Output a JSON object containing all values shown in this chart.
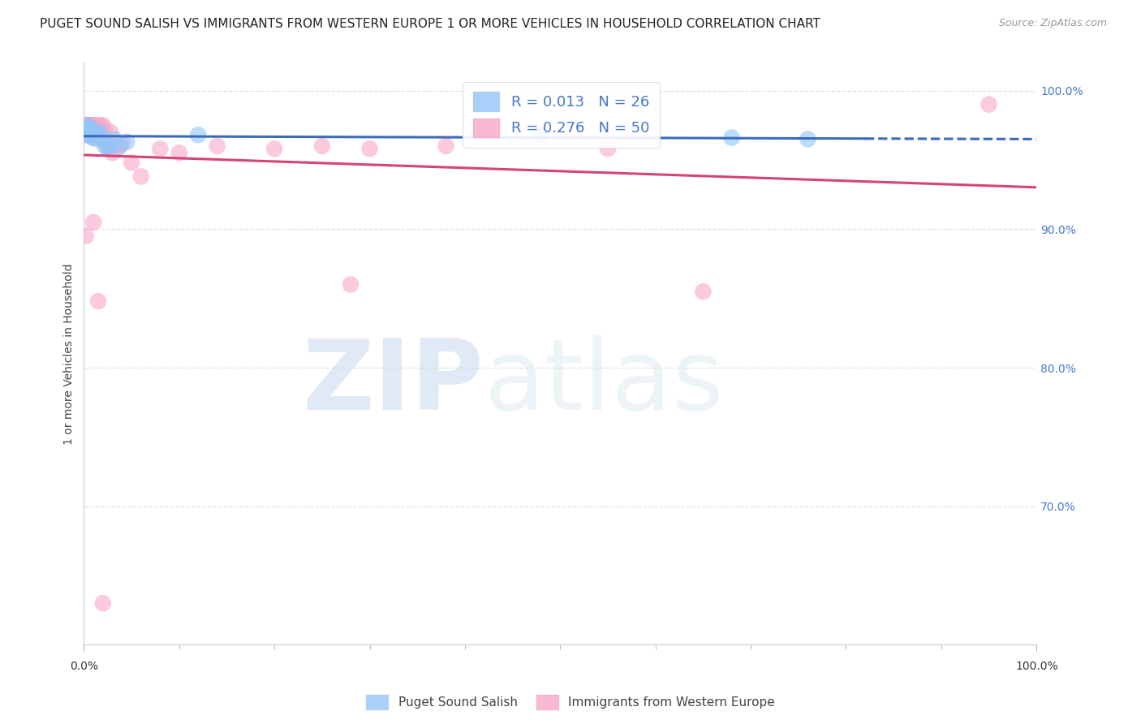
{
  "title": "PUGET SOUND SALISH VS IMMIGRANTS FROM WESTERN EUROPE 1 OR MORE VEHICLES IN HOUSEHOLD CORRELATION CHART",
  "source": "Source: ZipAtlas.com",
  "ylabel": "1 or more Vehicles in Household",
  "xlim": [
    0.0,
    1.0
  ],
  "ylim": [
    0.6,
    1.02
  ],
  "ytick_positions": [
    0.6,
    0.7,
    0.8,
    0.9,
    1.0
  ],
  "ytick_labels": [
    "",
    "70.0%",
    "80.0%",
    "90.0%",
    "100.0%"
  ],
  "blue_color": "#92c5f7",
  "pink_color": "#f9a8c9",
  "blue_edge_color": "#5a9fd4",
  "pink_edge_color": "#e06090",
  "blue_line_color": "#3a6bbf",
  "pink_line_color": "#d44477",
  "R_blue": 0.013,
  "N_blue": 26,
  "R_pink": 0.276,
  "N_pink": 50,
  "blue_scatter_x": [
    0.001,
    0.002,
    0.003,
    0.004,
    0.005,
    0.006,
    0.007,
    0.008,
    0.009,
    0.01,
    0.011,
    0.012,
    0.013,
    0.015,
    0.017,
    0.02,
    0.022,
    0.025,
    0.028,
    0.032,
    0.038,
    0.045,
    0.12,
    0.48,
    0.68,
    0.76
  ],
  "blue_scatter_y": [
    0.972,
    0.97,
    0.968,
    0.972,
    0.975,
    0.973,
    0.968,
    0.97,
    0.966,
    0.967,
    0.968,
    0.97,
    0.965,
    0.968,
    0.97,
    0.965,
    0.96,
    0.958,
    0.96,
    0.965,
    0.96,
    0.963,
    0.968,
    0.968,
    0.966,
    0.965
  ],
  "pink_scatter_x": [
    0.001,
    0.002,
    0.002,
    0.003,
    0.004,
    0.004,
    0.005,
    0.005,
    0.006,
    0.007,
    0.007,
    0.008,
    0.008,
    0.009,
    0.01,
    0.01,
    0.011,
    0.011,
    0.012,
    0.013,
    0.014,
    0.015,
    0.016,
    0.017,
    0.018,
    0.019,
    0.02,
    0.022,
    0.025,
    0.028,
    0.03,
    0.035,
    0.04,
    0.05,
    0.06,
    0.08,
    0.1,
    0.14,
    0.2,
    0.25,
    0.3,
    0.28,
    0.38,
    0.55,
    0.65,
    0.95,
    0.002,
    0.01,
    0.015,
    0.02
  ],
  "pink_scatter_y": [
    0.975,
    0.975,
    0.97,
    0.975,
    0.975,
    0.968,
    0.975,
    0.972,
    0.973,
    0.975,
    0.972,
    0.975,
    0.972,
    0.975,
    0.975,
    0.97,
    0.975,
    0.968,
    0.972,
    0.97,
    0.968,
    0.975,
    0.972,
    0.975,
    0.972,
    0.965,
    0.975,
    0.972,
    0.96,
    0.97,
    0.955,
    0.958,
    0.962,
    0.948,
    0.938,
    0.958,
    0.955,
    0.96,
    0.958,
    0.96,
    0.958,
    0.86,
    0.96,
    0.958,
    0.855,
    0.99,
    0.895,
    0.905,
    0.848,
    0.63
  ],
  "watermark_zip": "ZIP",
  "watermark_atlas": "atlas",
  "grid_color": "#e0e0e0",
  "background_color": "#ffffff",
  "title_fontsize": 11,
  "axis_label_fontsize": 10,
  "tick_fontsize": 10,
  "tick_color": "#4477cc",
  "legend_label_blue": "Puget Sound Salish",
  "legend_label_pink": "Immigrants from Western Europe"
}
